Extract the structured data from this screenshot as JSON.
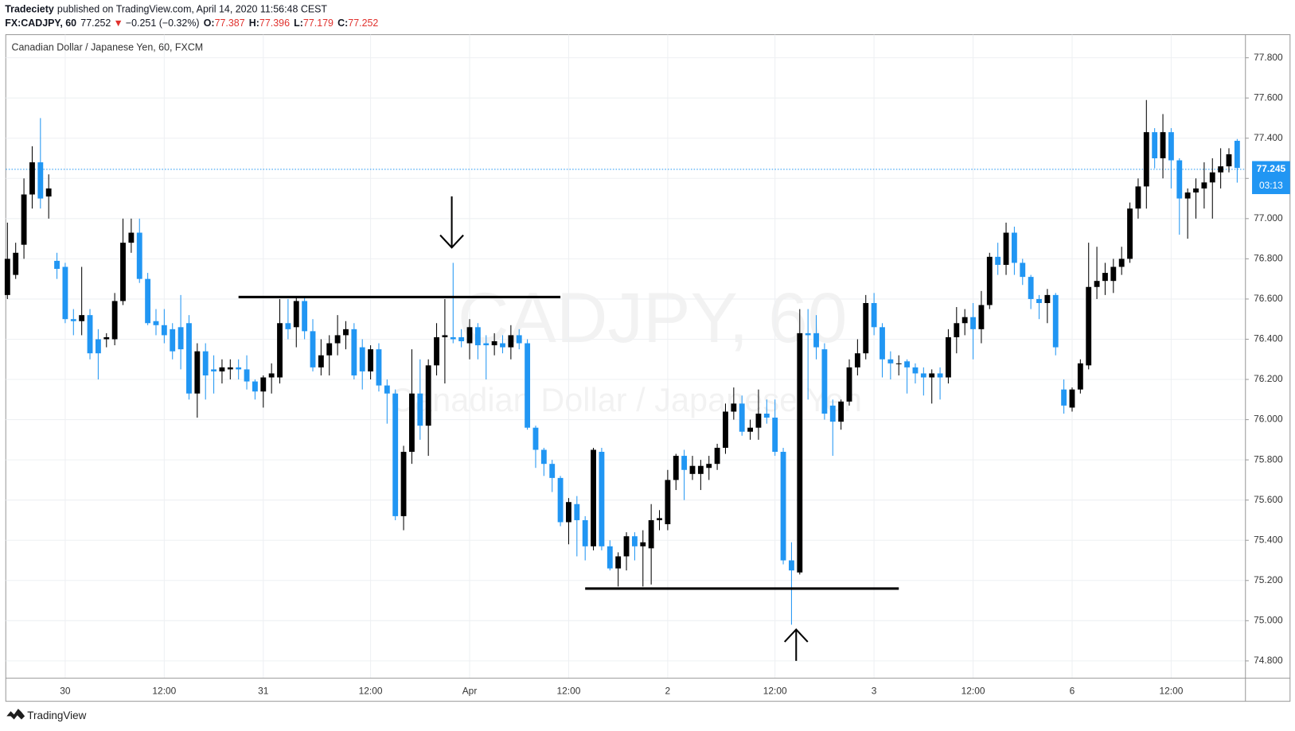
{
  "header": {
    "author": "Tradeciety",
    "published": "published on TradingView.com, April 14, 2020 11:56:48 CEST",
    "symbol": "FX:CADJPY, 60",
    "last": "77.252",
    "direction_symbol": "▼",
    "change": "−0.251 (−0.32%)",
    "o_label": "O:",
    "o": "77.387",
    "h_label": "H:",
    "h": "77.396",
    "l_label": "L:",
    "l": "77.179",
    "c_label": "C:",
    "c": "77.252"
  },
  "chart_data": {
    "type": "candlestick",
    "title": "Canadian Dollar / Japanese Yen, 60, FXCM",
    "watermark": "CADJPY, 60",
    "watermark_subtitle": "Canadian Dollar / Japanese Yen",
    "up_color": "#000000",
    "down_color": "#2196f3",
    "grid": true,
    "ylim": [
      74.714,
      77.915
    ],
    "yticks": [
      {
        "value": 74.8,
        "label": "74.800"
      },
      {
        "value": 75.0,
        "label": "75.000"
      },
      {
        "value": 75.2,
        "label": "75.200"
      },
      {
        "value": 75.4,
        "label": "75.400"
      },
      {
        "value": 75.6,
        "label": "75.600"
      },
      {
        "value": 75.8,
        "label": "75.800"
      },
      {
        "value": 76.0,
        "label": "76.000"
      },
      {
        "value": 76.2,
        "label": "76.200"
      },
      {
        "value": 76.4,
        "label": "76.400"
      },
      {
        "value": 76.6,
        "label": "76.600"
      },
      {
        "value": 76.8,
        "label": "76.800"
      },
      {
        "value": 77.0,
        "label": "77.000"
      },
      {
        "value": 77.2,
        "label": "77.200"
      },
      {
        "value": 77.4,
        "label": "77.400"
      },
      {
        "value": 77.6,
        "label": "77.600"
      },
      {
        "value": 77.8,
        "label": "77.800"
      }
    ],
    "last_price": {
      "value": 77.245,
      "label": "77.245"
    },
    "countdown": "03:13",
    "levels": [
      {
        "value": 76.61,
        "from": 28,
        "to": 67
      },
      {
        "value": 75.16,
        "from": 70,
        "to": 108
      }
    ],
    "categories": [
      null,
      null,
      null,
      null,
      null,
      null,
      null,
      "30",
      null,
      null,
      null,
      null,
      null,
      null,
      null,
      null,
      null,
      null,
      null,
      "12:00",
      null,
      null,
      null,
      null,
      null,
      null,
      null,
      null,
      null,
      null,
      null,
      "31",
      null,
      null,
      null,
      null,
      null,
      null,
      null,
      null,
      null,
      null,
      null,
      null,
      "12:00",
      null,
      null,
      null,
      null,
      null,
      null,
      null,
      null,
      null,
      null,
      null,
      "Apr",
      null,
      null,
      null,
      null,
      null,
      null,
      null,
      null,
      null,
      null,
      null,
      "12:00",
      null,
      null,
      null,
      null,
      null,
      null,
      null,
      null,
      null,
      null,
      null,
      "2",
      null,
      null,
      null,
      null,
      null,
      null,
      null,
      null,
      null,
      null,
      null,
      null,
      "12:00",
      null,
      null,
      null,
      null,
      null,
      null,
      null,
      null,
      null,
      null,
      null,
      "3",
      null,
      null,
      null,
      null,
      null,
      null,
      null,
      null,
      null,
      null,
      null,
      "12:00",
      null,
      null,
      null,
      null,
      null,
      null,
      null,
      null,
      null,
      null,
      null,
      "6",
      null,
      null,
      null,
      null,
      null,
      null,
      null,
      null,
      null,
      null,
      null,
      "12:00",
      null,
      null,
      null,
      null,
      null,
      null,
      null,
      null
    ],
    "open": [
      76.62,
      76.72,
      76.87,
      77.12,
      77.28,
      77.11,
      76.79,
      76.76,
      76.5,
      76.49,
      76.52,
      76.4,
      76.4,
      76.4,
      76.59,
      76.88,
      76.93,
      76.7,
      76.49,
      76.47,
      76.45,
      76.46,
      76.48,
      76.13,
      76.34,
      76.25,
      76.24,
      76.25,
      76.26,
      76.25,
      76.19,
      76.14,
      76.21,
      76.21,
      76.48,
      76.46,
      76.59,
      76.44,
      76.26,
      76.32,
      76.38,
      76.42,
      76.45,
      76.36,
      76.24,
      76.35,
      76.17,
      76.13,
      75.52,
      75.84,
      76.13,
      75.97,
      76.27,
      76.41,
      76.41,
      76.41,
      76.38,
      76.46,
      76.38,
      76.37,
      76.38,
      76.36,
      76.42,
      76.38,
      75.96,
      75.85,
      75.78,
      75.71,
      75.49,
      75.58,
      75.5,
      75.37,
      75.84,
      75.37,
      75.26,
      75.32,
      75.42,
      75.37,
      75.36,
      75.5,
      75.48,
      75.7,
      75.82,
      75.73,
      75.73,
      75.76,
      75.78,
      75.86,
      76.04,
      76.08,
      75.94,
      75.96,
      76.03,
      76.01,
      75.84,
      75.3,
      75.24,
      76.43,
      76.43,
      76.35,
      76.07,
      75.99,
      76.09,
      76.26,
      76.33,
      76.58,
      76.46,
      76.3,
      76.28,
      76.29,
      76.26,
      76.23,
      76.21,
      76.23,
      76.21,
      76.41,
      76.48,
      76.51,
      76.45,
      76.57,
      76.81,
      76.77,
      76.93,
      76.78,
      76.71,
      76.6,
      76.58,
      76.62,
      76.15,
      76.06,
      76.15,
      76.27,
      76.66,
      76.69,
      76.69,
      76.76,
      76.8,
      77.05,
      77.16,
      77.43,
      77.3,
      77.43,
      77.29,
      77.1,
      77.13,
      77.15,
      77.18,
      77.23,
      77.26,
      77.387
    ],
    "high": [
      76.98,
      76.88,
      77.2,
      77.36,
      77.5,
      77.22,
      76.83,
      76.78,
      76.55,
      76.76,
      76.55,
      76.45,
      76.43,
      76.63,
      77.0,
      77.0,
      77.0,
      76.73,
      76.55,
      76.55,
      76.48,
      76.62,
      76.52,
      76.38,
      76.38,
      76.32,
      76.3,
      76.3,
      76.3,
      76.32,
      76.2,
      76.22,
      76.28,
      76.6,
      76.6,
      76.61,
      76.61,
      76.5,
      76.4,
      76.42,
      76.52,
      76.49,
      76.48,
      76.4,
      76.37,
      76.38,
      76.2,
      76.15,
      75.87,
      76.35,
      76.3,
      76.3,
      76.48,
      76.6,
      76.78,
      76.45,
      76.5,
      76.48,
      76.42,
      76.43,
      76.42,
      76.47,
      76.45,
      76.4,
      75.97,
      75.86,
      75.8,
      75.72,
      75.61,
      75.62,
      75.52,
      75.86,
      75.86,
      75.4,
      75.34,
      75.44,
      75.44,
      75.45,
      75.58,
      75.55,
      75.75,
      75.83,
      75.85,
      75.82,
      75.8,
      75.82,
      75.88,
      76.08,
      76.16,
      76.12,
      76.0,
      76.15,
      76.1,
      76.1,
      75.86,
      75.39,
      76.55,
      76.55,
      76.52,
      76.38,
      76.1,
      76.1,
      76.3,
      76.4,
      76.62,
      76.63,
      76.48,
      76.34,
      76.32,
      76.3,
      76.28,
      76.26,
      76.25,
      76.26,
      76.45,
      76.56,
      76.55,
      76.58,
      76.64,
      76.83,
      76.88,
      76.98,
      76.96,
      76.8,
      76.72,
      76.62,
      76.65,
      76.63,
      76.2,
      76.16,
      76.3,
      76.88,
      76.86,
      76.78,
      76.8,
      76.86,
      77.08,
      77.2,
      77.59,
      77.45,
      77.52,
      77.45,
      77.3,
      77.15,
      77.2,
      77.28,
      77.3,
      77.35,
      77.35,
      77.396
    ],
    "low": [
      76.6,
      76.7,
      76.8,
      77.05,
      77.05,
      77.0,
      76.7,
      76.48,
      76.42,
      76.42,
      76.3,
      76.2,
      76.36,
      76.37,
      76.57,
      76.83,
      76.68,
      76.47,
      76.42,
      76.38,
      76.3,
      76.25,
      76.1,
      76.01,
      76.1,
      76.13,
      76.18,
      76.2,
      76.2,
      76.15,
      76.1,
      76.06,
      76.13,
      76.18,
      76.4,
      76.36,
      76.4,
      76.24,
      76.22,
      76.22,
      76.32,
      76.35,
      76.2,
      76.15,
      76.2,
      76.14,
      75.98,
      75.5,
      75.45,
      75.78,
      75.9,
      75.82,
      76.22,
      76.18,
      76.38,
      76.36,
      76.3,
      76.3,
      76.2,
      76.32,
      76.33,
      76.3,
      76.35,
      75.95,
      75.76,
      75.72,
      75.64,
      75.47,
      75.38,
      75.32,
      75.3,
      75.35,
      75.35,
      75.25,
      75.17,
      75.25,
      75.3,
      75.17,
      75.18,
      75.45,
      75.45,
      75.65,
      75.6,
      75.7,
      75.65,
      75.7,
      75.75,
      75.83,
      76.0,
      75.92,
      75.9,
      75.9,
      75.98,
      75.82,
      75.28,
      74.98,
      75.23,
      76.1,
      76.3,
      76.0,
      75.82,
      75.95,
      76.07,
      76.22,
      76.3,
      76.42,
      76.21,
      76.2,
      76.22,
      76.13,
      76.18,
      76.12,
      76.08,
      76.1,
      76.18,
      76.33,
      76.42,
      76.3,
      76.38,
      76.55,
      76.72,
      76.72,
      76.72,
      76.67,
      76.55,
      76.5,
      76.48,
      76.32,
      76.03,
      76.04,
      76.13,
      76.25,
      76.6,
      76.62,
      76.63,
      76.72,
      76.78,
      77.0,
      77.05,
      77.25,
      77.2,
      77.15,
      76.92,
      76.9,
      77.0,
      77.05,
      77.0,
      77.15,
      77.23,
      77.179
    ],
    "close": [
      76.8,
      76.83,
      77.12,
      77.28,
      77.1,
      77.15,
      76.75,
      76.5,
      76.49,
      76.52,
      76.33,
      76.33,
      76.41,
      76.59,
      76.88,
      76.93,
      76.7,
      76.48,
      76.47,
      76.42,
      76.34,
      76.35,
      76.13,
      76.34,
      76.22,
      76.24,
      76.26,
      76.26,
      76.25,
      76.19,
      76.14,
      76.21,
      76.23,
      76.48,
      76.45,
      76.59,
      76.44,
      76.26,
      76.32,
      76.38,
      76.42,
      76.45,
      76.22,
      76.24,
      76.35,
      76.17,
      76.13,
      75.52,
      75.84,
      76.13,
      75.97,
      76.27,
      76.41,
      76.42,
      76.4,
      76.39,
      76.46,
      76.37,
      76.37,
      76.39,
      76.36,
      76.42,
      76.38,
      75.96,
      75.85,
      75.78,
      75.71,
      75.49,
      75.59,
      75.5,
      75.37,
      75.85,
      75.37,
      75.26,
      75.32,
      75.42,
      75.37,
      75.39,
      75.5,
      75.51,
      75.7,
      75.82,
      75.75,
      75.77,
      75.77,
      75.78,
      75.86,
      76.04,
      76.08,
      75.94,
      75.96,
      76.03,
      76.01,
      75.84,
      75.3,
      75.25,
      76.43,
      76.42,
      76.36,
      76.03,
      75.99,
      76.09,
      76.26,
      76.33,
      76.58,
      76.46,
      76.3,
      76.28,
      76.28,
      76.26,
      76.23,
      76.21,
      76.23,
      76.21,
      76.41,
      76.48,
      76.51,
      76.45,
      76.57,
      76.81,
      76.77,
      76.93,
      76.78,
      76.71,
      76.6,
      76.58,
      76.62,
      76.36,
      76.07,
      76.15,
      76.28,
      76.66,
      76.69,
      76.73,
      76.76,
      76.8,
      77.05,
      77.16,
      77.43,
      77.3,
      77.43,
      77.29,
      77.1,
      77.13,
      77.15,
      77.18,
      77.23,
      77.26,
      77.32,
      77.252
    ]
  },
  "footer": {
    "brand": "TradingView"
  }
}
